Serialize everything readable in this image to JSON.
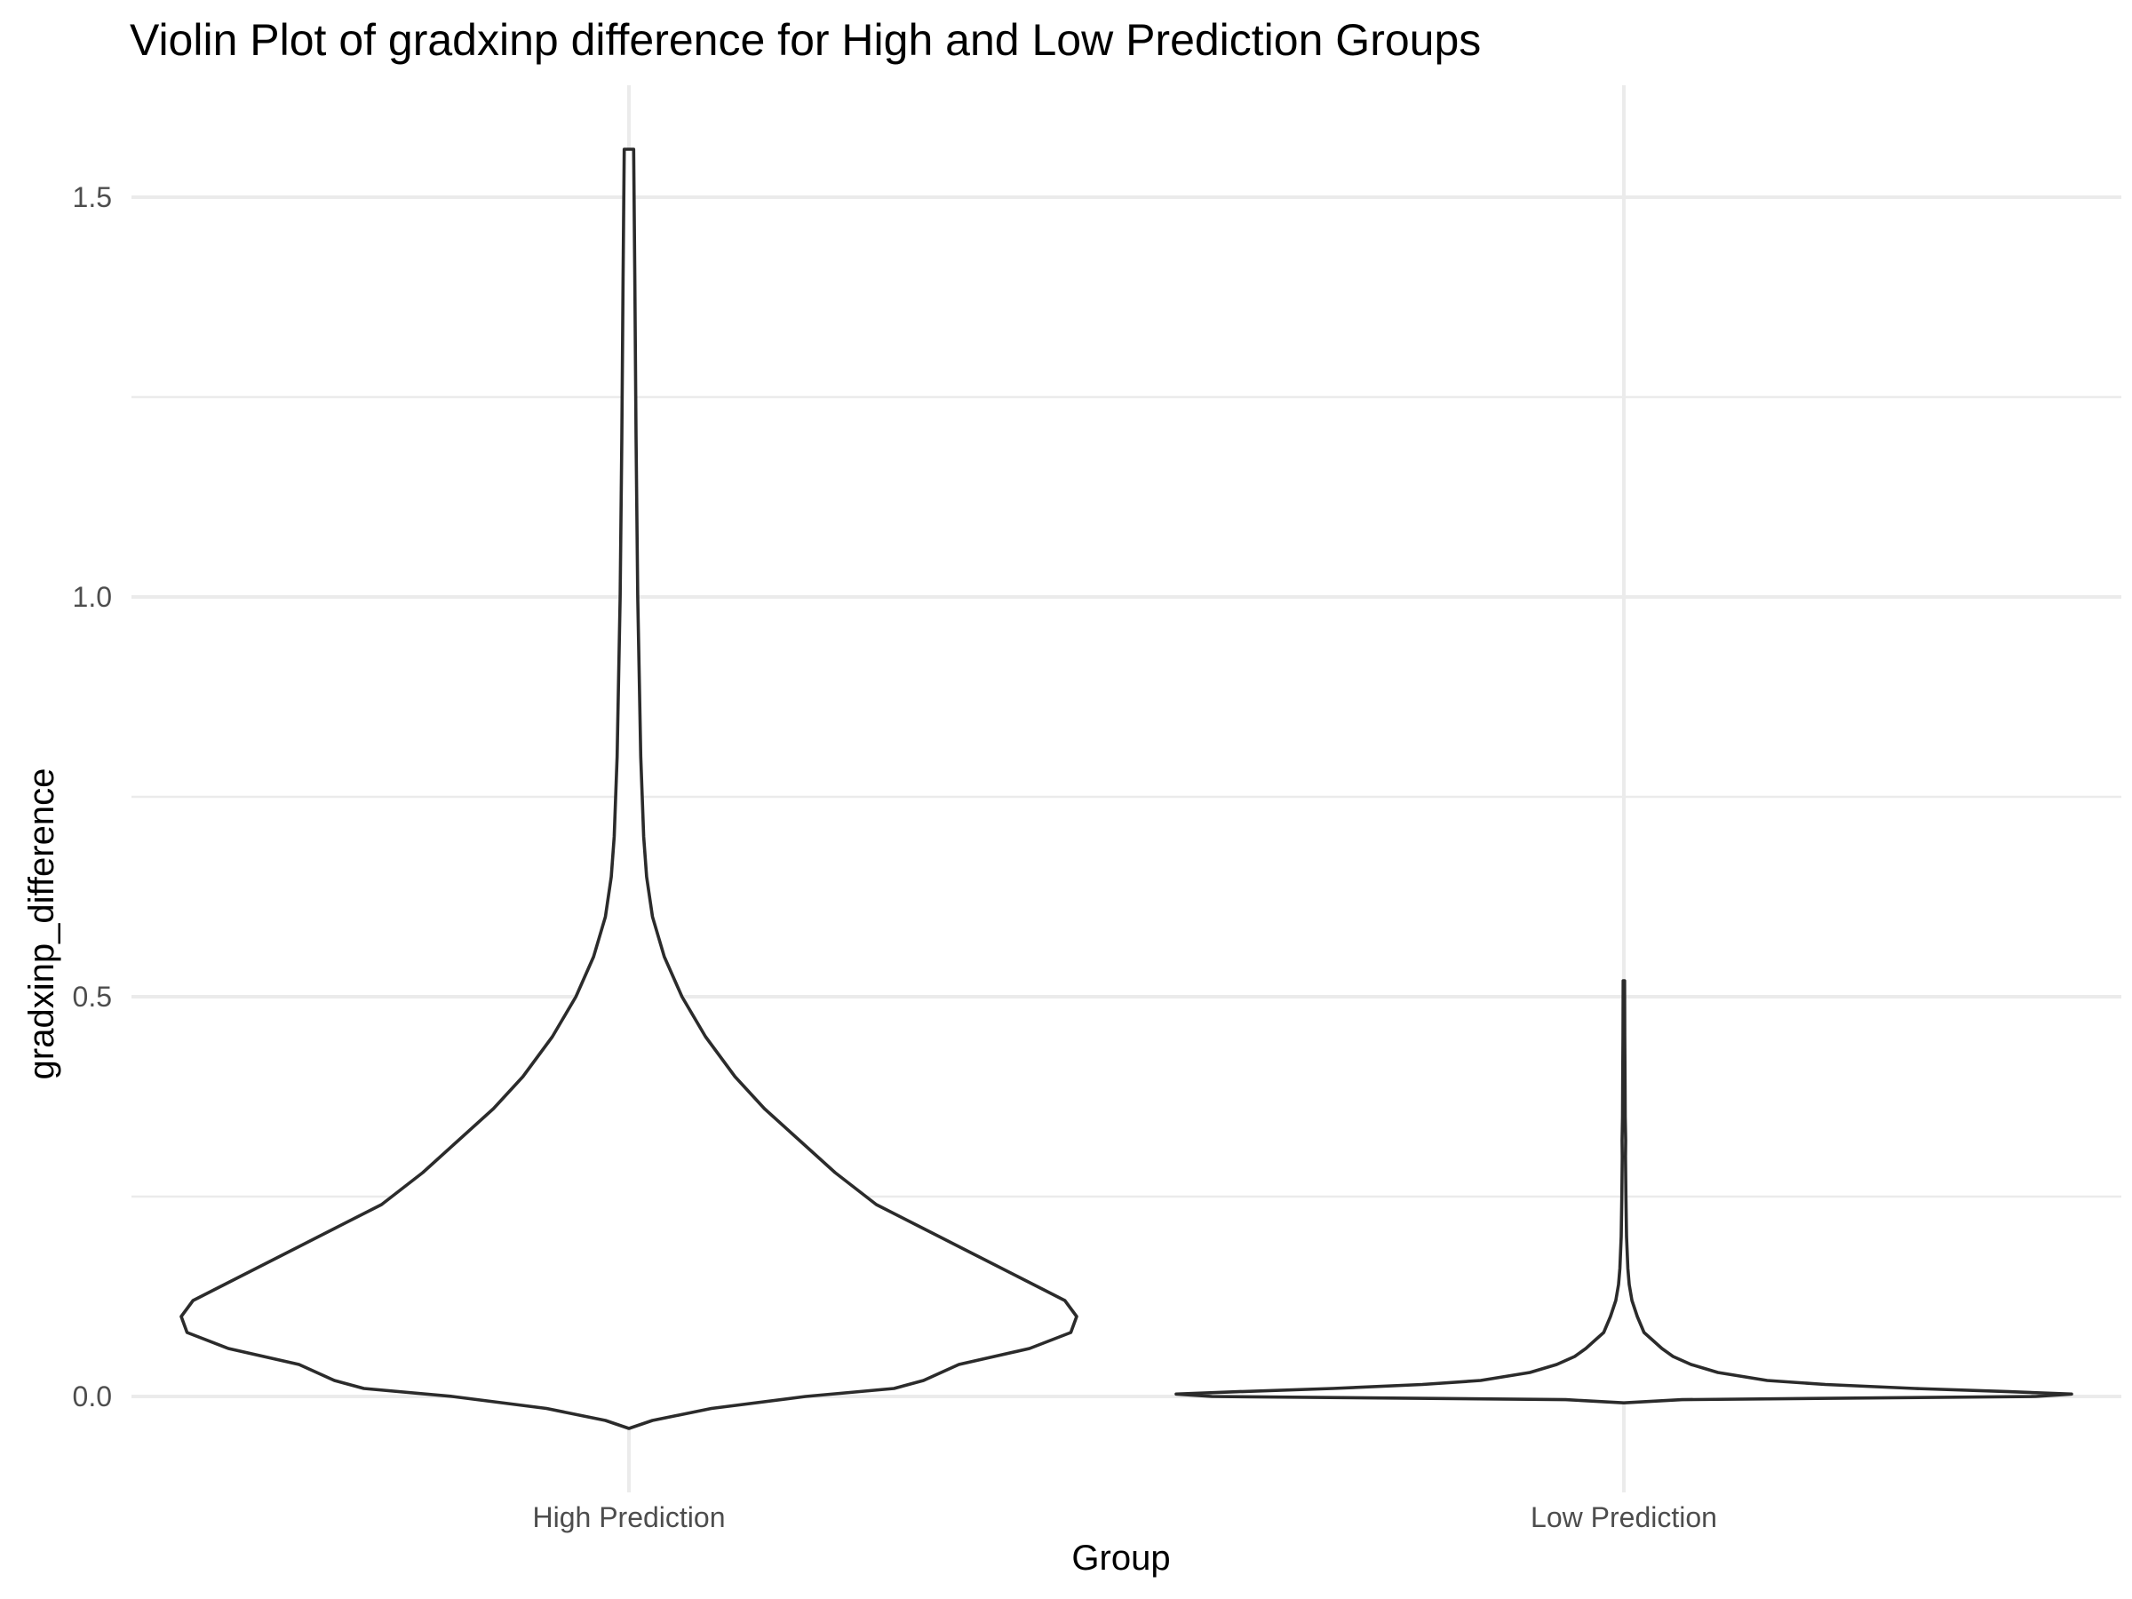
{
  "chart_data": {
    "type": "violin",
    "title": "Violin Plot of gradxinp difference for High and Low Prediction Groups",
    "xlabel": "Group",
    "ylabel": "gradxinp_difference",
    "categories": [
      "High Prediction",
      "Low Prediction"
    ],
    "yticks": [
      "0.0",
      "0.5",
      "1.0",
      "1.5"
    ],
    "ylim": [
      -0.12,
      1.64
    ],
    "grid": true,
    "colors": {
      "fill": "#ffffff",
      "outline": "#2b2b2b",
      "grid": "#ebebeb"
    },
    "series": [
      {
        "category": "High Prediction",
        "min": -0.04,
        "max": 1.56,
        "density": [
          [
            -0.04,
            0.0
          ],
          [
            -0.03,
            0.004
          ],
          [
            -0.015,
            0.014
          ],
          [
            0.0,
            0.03
          ],
          [
            0.01,
            0.045
          ],
          [
            0.02,
            0.05
          ],
          [
            0.04,
            0.056
          ],
          [
            0.06,
            0.068
          ],
          [
            0.08,
            0.075
          ],
          [
            0.1,
            0.076
          ],
          [
            0.12,
            0.074
          ],
          [
            0.15,
            0.066
          ],
          [
            0.18,
            0.058
          ],
          [
            0.21,
            0.05
          ],
          [
            0.24,
            0.042
          ],
          [
            0.28,
            0.035
          ],
          [
            0.32,
            0.029
          ],
          [
            0.36,
            0.023
          ],
          [
            0.4,
            0.018
          ],
          [
            0.45,
            0.013
          ],
          [
            0.5,
            0.009
          ],
          [
            0.55,
            0.006
          ],
          [
            0.6,
            0.004
          ],
          [
            0.65,
            0.003
          ],
          [
            0.7,
            0.0025
          ],
          [
            0.8,
            0.002
          ],
          [
            1.0,
            0.0015
          ],
          [
            1.2,
            0.0012
          ],
          [
            1.4,
            0.001
          ],
          [
            1.56,
            0.0008
          ]
        ]
      },
      {
        "category": "Low Prediction",
        "min": -0.008,
        "max": 0.52,
        "density": [
          [
            -0.008,
            0.0
          ],
          [
            -0.004,
            0.13
          ],
          [
            0.0,
            0.92
          ],
          [
            0.003,
            1.0
          ],
          [
            0.006,
            0.86
          ],
          [
            0.01,
            0.65
          ],
          [
            0.015,
            0.45
          ],
          [
            0.02,
            0.32
          ],
          [
            0.03,
            0.21
          ],
          [
            0.04,
            0.15
          ],
          [
            0.05,
            0.11
          ],
          [
            0.06,
            0.085
          ],
          [
            0.07,
            0.065
          ],
          [
            0.08,
            0.045
          ],
          [
            0.1,
            0.03
          ],
          [
            0.12,
            0.018
          ],
          [
            0.14,
            0.012
          ],
          [
            0.16,
            0.009
          ],
          [
            0.2,
            0.006
          ],
          [
            0.25,
            0.0045
          ],
          [
            0.3,
            0.0035
          ],
          [
            0.32,
            0.004
          ],
          [
            0.35,
            0.003
          ],
          [
            0.4,
            0.0025
          ],
          [
            0.45,
            0.002
          ],
          [
            0.52,
            0.0015
          ]
        ]
      }
    ]
  }
}
